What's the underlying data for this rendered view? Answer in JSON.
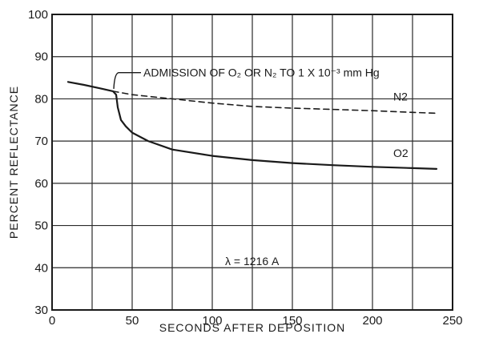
{
  "chart_data": {
    "type": "line",
    "title": "",
    "xlabel": "SECONDS AFTER DEPOSITION",
    "ylabel": "PERCENT REFLECTANCE",
    "xlim": [
      0,
      250
    ],
    "ylim": [
      30,
      100
    ],
    "xticks": [
      0,
      50,
      100,
      150,
      200,
      250
    ],
    "yticks": [
      30,
      40,
      50,
      60,
      70,
      80,
      90,
      100
    ],
    "grid": true,
    "series": [
      {
        "name": "O2",
        "style": "solid",
        "color": "#1a1a1a",
        "x": [
          10,
          20,
          30,
          38,
          40,
          41,
          43,
          46,
          50,
          60,
          75,
          100,
          125,
          150,
          175,
          200,
          225,
          240
        ],
        "y": [
          84,
          83.3,
          82.5,
          81.8,
          81,
          78,
          75,
          73.5,
          72,
          70,
          68,
          66.5,
          65.5,
          64.8,
          64.3,
          63.9,
          63.6,
          63.4
        ]
      },
      {
        "name": "N2",
        "style": "dashed",
        "color": "#1a1a1a",
        "x": [
          38,
          50,
          75,
          100,
          125,
          150,
          175,
          200,
          225,
          240
        ],
        "y": [
          81.8,
          81,
          80,
          79,
          78.2,
          77.8,
          77.5,
          77.2,
          76.8,
          76.6
        ]
      }
    ],
    "annotations": {
      "admission": "ADMISSION OF O₂ OR N₂ TO 1 X 10⁻³ mm Hg",
      "wavelength": "λ = 1216 A"
    }
  }
}
